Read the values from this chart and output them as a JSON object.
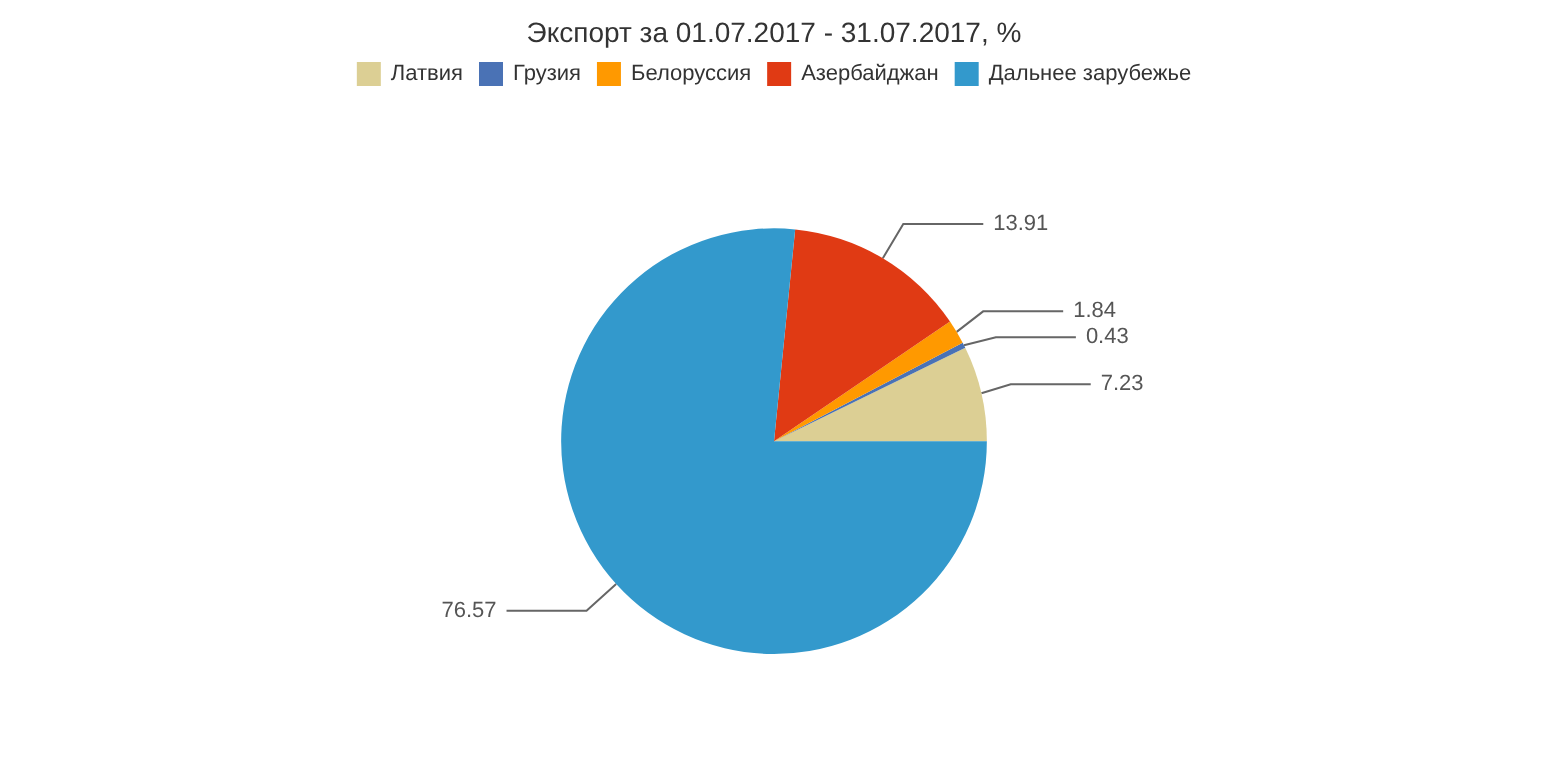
{
  "chart_data": {
    "type": "pie",
    "title": "Экспорт за 01.07.2017 - 31.07.2017, %",
    "categories": [
      "Латвия",
      "Грузия",
      "Белоруссия",
      "Азербайджан",
      "Дальнее зарубежье"
    ],
    "values": [
      7.23,
      0.43,
      1.84,
      13.91,
      76.57
    ],
    "colors": [
      "#dccf94",
      "#4a72b5",
      "#ff9900",
      "#e03a14",
      "#3399cc"
    ],
    "data_labels": true,
    "legend": "top"
  }
}
